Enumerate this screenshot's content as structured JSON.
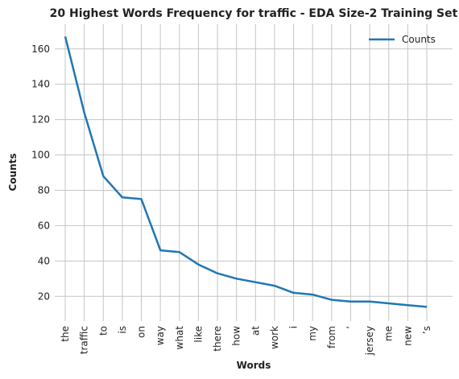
{
  "chart_data": {
    "type": "line",
    "title": "20 Highest Words Frequency for traffic - EDA Size-2 Training Set",
    "xlabel": "Words",
    "ylabel": "Counts",
    "categories": [
      "the",
      "traffic",
      "to",
      "is",
      "on",
      "way",
      "what",
      "like",
      "there",
      "how",
      "at",
      "work",
      "i",
      "my",
      "from",
      "’",
      "jersey",
      "me",
      "new",
      "’s"
    ],
    "series": [
      {
        "name": "Counts",
        "values": [
          167,
          124,
          88,
          76,
          75,
          46,
          45,
          38,
          33,
          30,
          28,
          26,
          22,
          21,
          18,
          17,
          17,
          16,
          15,
          14
        ]
      }
    ],
    "yticks": [
      20,
      40,
      60,
      80,
      100,
      120,
      140,
      160
    ],
    "ylim": [
      6,
      174
    ],
    "grid": true,
    "legend_position": "top-right",
    "colors": {
      "series": "#1f77b4",
      "grid": "#c5c5c5",
      "background": "#eaeaf2"
    }
  }
}
